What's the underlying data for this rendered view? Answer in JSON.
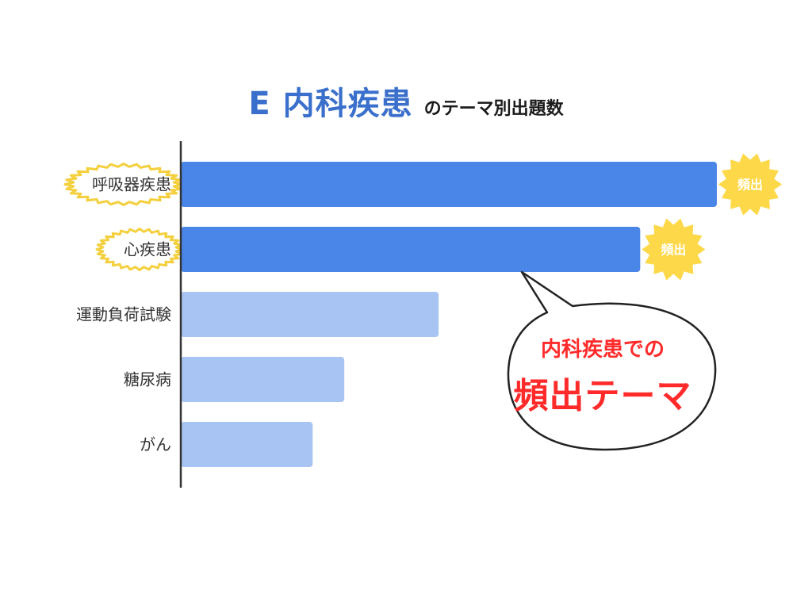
{
  "title": {
    "main": "E 内科疾患",
    "sub": "のテーマ別出題数"
  },
  "chart_data": {
    "type": "bar",
    "orientation": "horizontal",
    "title": "E 内科疾患 のテーマ別出題数",
    "categories": [
      "呼吸器疾患",
      "心疾患",
      "運動負荷試験",
      "糖尿病",
      "がん"
    ],
    "values": [
      100,
      85.7,
      48.1,
      30.5,
      24.6
    ],
    "xlim": [
      0,
      100
    ],
    "grid": false,
    "legend": "none",
    "highlighted": [
      "呼吸器疾患",
      "心疾患"
    ]
  },
  "badges": {
    "label": "頻出"
  },
  "callout": {
    "line1": "内科疾患での",
    "line2": "頻出テーマ"
  },
  "colors": {
    "highlight_bar": "#4a86e8",
    "normal_bar": "#a8c4f2",
    "title": "#3a6fcb",
    "burst": "#fdd94a",
    "label_burst_stroke": "#f4d03f",
    "callout_text": "#ff2b2b"
  }
}
